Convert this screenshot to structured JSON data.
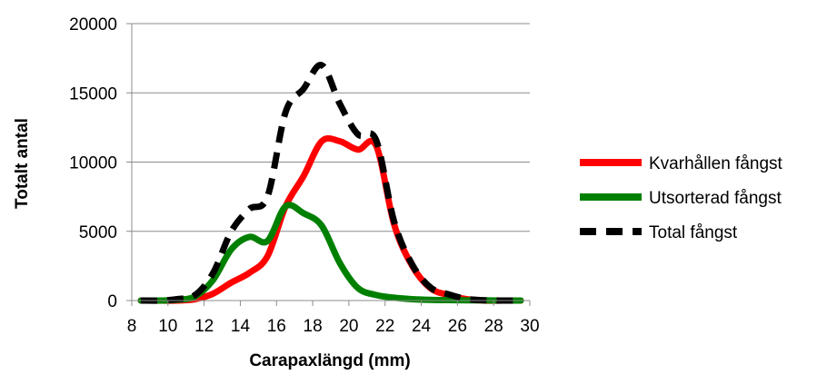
{
  "chart_data": {
    "type": "line",
    "title": "",
    "xlabel": "Carapaxlängd (mm)",
    "ylabel": "Totalt antal",
    "xlim": [
      8,
      30
    ],
    "ylim": [
      0,
      20000
    ],
    "x_ticks": [
      8,
      10,
      12,
      14,
      16,
      18,
      20,
      22,
      24,
      26,
      28,
      30
    ],
    "y_ticks": [
      0,
      5000,
      10000,
      15000,
      20000
    ],
    "grid": "horizontal",
    "legend_position": "right",
    "series": [
      {
        "name": "Kvarhållen fångst",
        "color": "#ff0000",
        "dash": "solid",
        "points": [
          [
            8.5,
            0
          ],
          [
            9.5,
            0
          ],
          [
            10.5,
            0
          ],
          [
            11.5,
            100
          ],
          [
            12.5,
            500
          ],
          [
            13.5,
            1300
          ],
          [
            14.5,
            2000
          ],
          [
            15.5,
            3200
          ],
          [
            16.5,
            6800
          ],
          [
            17.5,
            9000
          ],
          [
            18.5,
            11500
          ],
          [
            19.5,
            11500
          ],
          [
            20.5,
            10900
          ],
          [
            21.5,
            11200
          ],
          [
            22.5,
            5500
          ],
          [
            23.5,
            2500
          ],
          [
            24.5,
            900
          ],
          [
            25.5,
            400
          ],
          [
            26.5,
            100
          ],
          [
            27.5,
            0
          ],
          [
            28.5,
            0
          ],
          [
            29.5,
            0
          ]
        ]
      },
      {
        "name": "Utsorterad fångst",
        "color": "#008000",
        "dash": "solid",
        "points": [
          [
            8.5,
            0
          ],
          [
            9.5,
            0
          ],
          [
            10.5,
            50
          ],
          [
            11.5,
            300
          ],
          [
            12.5,
            1500
          ],
          [
            13.5,
            3700
          ],
          [
            14.5,
            4600
          ],
          [
            15.5,
            4300
          ],
          [
            16.5,
            6800
          ],
          [
            17.5,
            6300
          ],
          [
            18.5,
            5400
          ],
          [
            19.5,
            2700
          ],
          [
            20.5,
            900
          ],
          [
            21.5,
            400
          ],
          [
            22.5,
            200
          ],
          [
            23.5,
            100
          ],
          [
            24.5,
            50
          ],
          [
            25.5,
            30
          ],
          [
            26.5,
            20
          ],
          [
            27.5,
            10
          ],
          [
            28.5,
            0
          ],
          [
            29.5,
            0
          ]
        ]
      },
      {
        "name": "Total fångst",
        "color": "#000000",
        "dash": "dashed",
        "points": [
          [
            8.5,
            0
          ],
          [
            9.5,
            0
          ],
          [
            10.5,
            100
          ],
          [
            11.5,
            400
          ],
          [
            12.5,
            2000
          ],
          [
            13.5,
            5000
          ],
          [
            14.5,
            6600
          ],
          [
            15.5,
            7500
          ],
          [
            16.5,
            13600
          ],
          [
            17.5,
            15300
          ],
          [
            18.5,
            17000
          ],
          [
            19.5,
            14200
          ],
          [
            20.5,
            12000
          ],
          [
            21.5,
            11600
          ],
          [
            22.5,
            5700
          ],
          [
            23.5,
            2600
          ],
          [
            24.5,
            950
          ],
          [
            25.5,
            450
          ],
          [
            26.5,
            120
          ],
          [
            27.5,
            20
          ],
          [
            28.5,
            0
          ],
          [
            29.5,
            0
          ]
        ]
      }
    ]
  }
}
